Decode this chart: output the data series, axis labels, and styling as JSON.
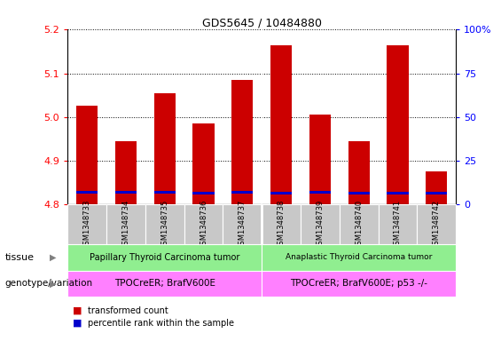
{
  "title": "GDS5645 / 10484880",
  "samples": [
    "GSM1348733",
    "GSM1348734",
    "GSM1348735",
    "GSM1348736",
    "GSM1348737",
    "GSM1348738",
    "GSM1348739",
    "GSM1348740",
    "GSM1348741",
    "GSM1348742"
  ],
  "transformed_count": [
    5.025,
    4.945,
    5.055,
    4.985,
    5.085,
    5.165,
    5.005,
    4.945,
    5.165,
    4.875
  ],
  "blue_segment_bottom": [
    4.824,
    4.824,
    4.824,
    4.822,
    4.824,
    4.823,
    4.824,
    4.822,
    4.823,
    4.822
  ],
  "blue_segment_height": [
    0.006,
    0.006,
    0.006,
    0.006,
    0.006,
    0.006,
    0.006,
    0.006,
    0.006,
    0.006
  ],
  "bar_bottom": 4.8,
  "ylim": [
    4.8,
    5.2
  ],
  "yticks_left": [
    4.8,
    4.9,
    5.0,
    5.1,
    5.2
  ],
  "yticks_right": [
    0,
    25,
    50,
    75,
    100
  ],
  "ytick_labels_right": [
    "0",
    "25",
    "50",
    "75",
    "100%"
  ],
  "bar_width": 0.55,
  "red_color": "#cc0000",
  "blue_color": "#0000cc",
  "tissue_label1": "Papillary Thyroid Carcinoma tumor",
  "tissue_label2": "Anaplastic Thyroid Carcinoma tumor",
  "tissue_color": "#90ee90",
  "genotype_label1": "TPOCreER; BrafV600E",
  "genotype_label2": "TPOCreER; BrafV600E; p53 -/-",
  "genotype_color": "#ff80ff",
  "grid_color": "black",
  "bg_color": "white",
  "label_bg_color": "#c8c8c8",
  "tissue_row_label": "tissue",
  "genotype_row_label": "genotype/variation",
  "legend_red": "transformed count",
  "legend_blue": "percentile rank within the sample",
  "split_at": 5
}
